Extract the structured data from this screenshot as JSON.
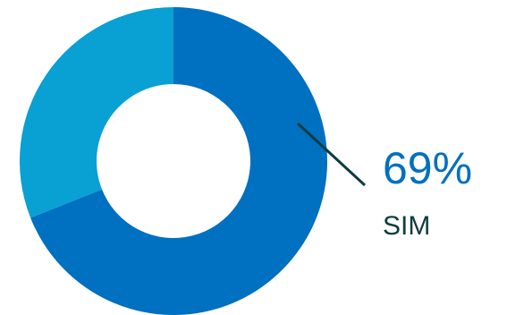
{
  "chart_data": {
    "type": "pie",
    "variant": "donut",
    "slices": [
      {
        "label": "SIM",
        "value": 69,
        "color": "#0070c0"
      },
      {
        "label": "",
        "value": 31,
        "color": "#09a0d3"
      }
    ],
    "annotation": {
      "value_text": "69%",
      "category_text": "SIM",
      "value_color": "#0070c0",
      "leader_color": "#0f3b3f"
    },
    "title": "",
    "legend": "none"
  }
}
